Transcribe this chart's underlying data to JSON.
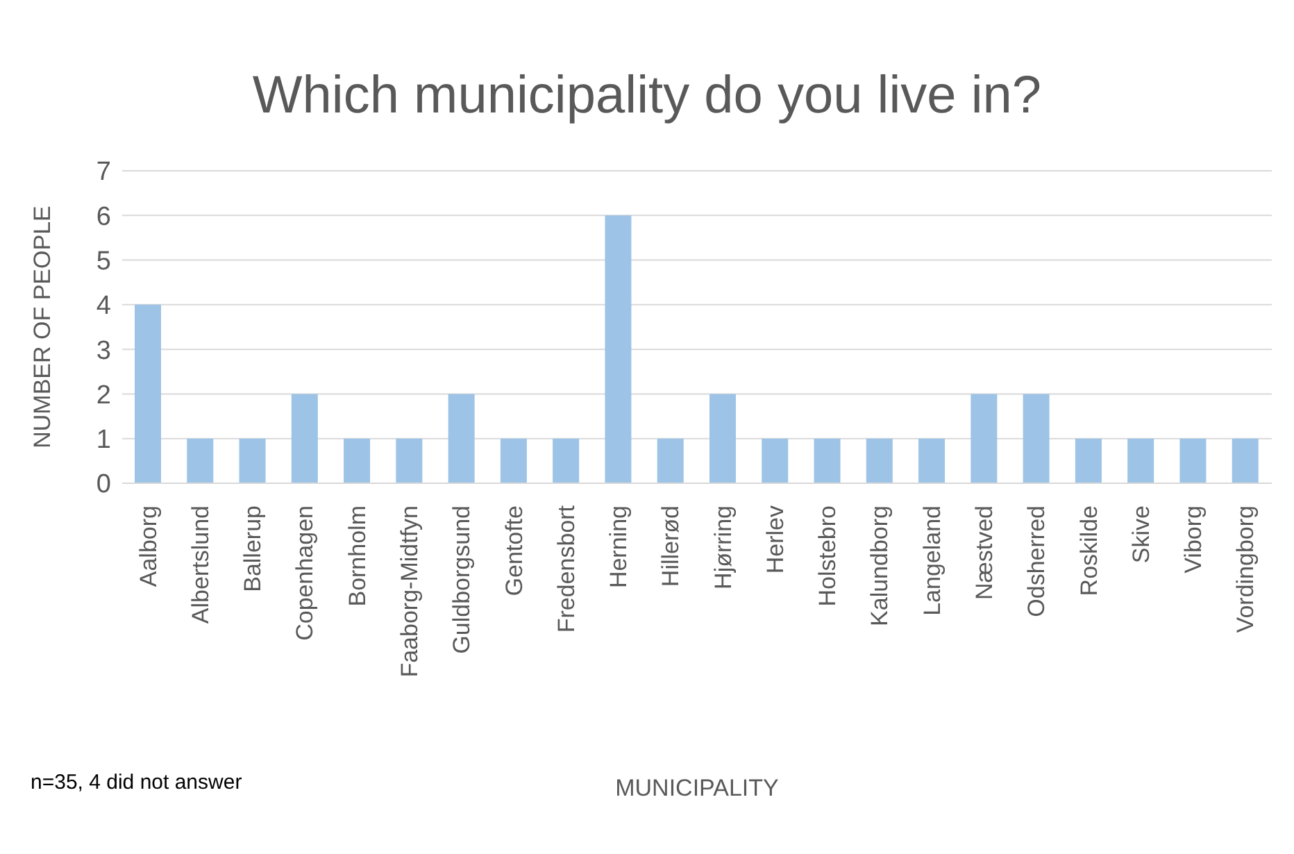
{
  "chart_data": {
    "type": "bar",
    "title": "Which municipality do you live in?",
    "xlabel": "MUNICIPALITY",
    "ylabel": "NUMBER OF PEOPLE",
    "categories": [
      "Aalborg",
      "Albertslund",
      "Ballerup",
      "Copenhagen",
      "Bornholm",
      "Faaborg-Midtfyn",
      "Guldborgsund",
      "Gentofte",
      "Fredensbort",
      "Herning",
      "Hillerød",
      "Hjørring",
      "Herlev",
      "Holstebro",
      "Kalundborg",
      "Langeland",
      "Næstved",
      "Odsherred",
      "Roskilde",
      "Skive",
      "Viborg",
      "Vordingborg"
    ],
    "values": [
      4,
      1,
      1,
      2,
      1,
      1,
      2,
      1,
      1,
      6,
      1,
      2,
      1,
      1,
      1,
      1,
      2,
      2,
      1,
      1,
      1,
      1
    ],
    "color": "#9dc3e6",
    "ylim": [
      0,
      7
    ],
    "yticks": [
      0,
      1,
      2,
      3,
      4,
      5,
      6,
      7
    ],
    "grid": "y",
    "annotations": [
      "n=35, 4 did not answer"
    ]
  }
}
